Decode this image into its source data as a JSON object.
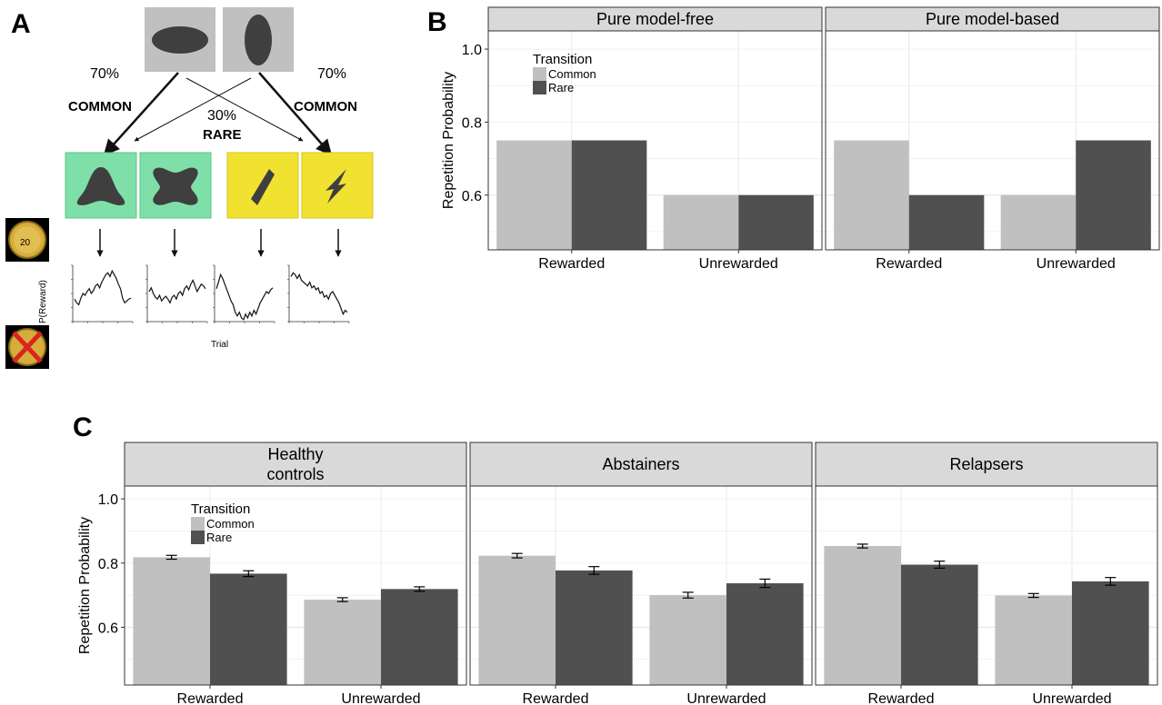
{
  "panels": {
    "a_label": "A",
    "b_label": "B",
    "c_label": "C"
  },
  "diagram": {
    "left_pct": "70%",
    "right_pct": "70%",
    "left_common": "COMMON",
    "right_common": "COMMON",
    "rare_pct": "30%",
    "rare_label": "RARE",
    "y_label": "P(Reward)",
    "x_label": "Trial",
    "colors": {
      "first_stage_box": "#c0c0c0",
      "green_box": "#7ee0a8",
      "yellow_box": "#f1e231",
      "shape": "#3f3f3f"
    },
    "icons": [
      "ellipse-horizontal-icon",
      "ellipse-vertical-icon",
      "bell-shape-icon",
      "dumbbell-shape-icon",
      "rhombus-shape-icon",
      "lightning-shape-icon",
      "coin-icon",
      "crossed-coin-icon"
    ],
    "walks": [
      [
        0.44,
        0.4,
        0.38,
        0.45,
        0.5,
        0.48,
        0.52,
        0.55,
        0.5,
        0.53,
        0.58,
        0.6,
        0.56,
        0.62,
        0.66,
        0.7,
        0.72,
        0.68,
        0.74,
        0.7,
        0.66,
        0.6,
        0.55,
        0.45,
        0.4,
        0.42,
        0.44,
        0.45
      ],
      [
        0.52,
        0.56,
        0.5,
        0.46,
        0.44,
        0.48,
        0.42,
        0.45,
        0.47,
        0.44,
        0.4,
        0.46,
        0.48,
        0.44,
        0.5,
        0.52,
        0.48,
        0.55,
        0.58,
        0.54,
        0.6,
        0.64,
        0.58,
        0.52,
        0.56,
        0.6,
        0.58,
        0.55
      ],
      [
        0.55,
        0.62,
        0.7,
        0.66,
        0.6,
        0.54,
        0.48,
        0.42,
        0.38,
        0.3,
        0.26,
        0.3,
        0.24,
        0.22,
        0.28,
        0.24,
        0.3,
        0.26,
        0.32,
        0.28,
        0.34,
        0.4,
        0.44,
        0.48,
        0.52,
        0.5,
        0.54,
        0.56
      ],
      [
        0.68,
        0.72,
        0.7,
        0.66,
        0.7,
        0.64,
        0.62,
        0.6,
        0.58,
        0.62,
        0.56,
        0.58,
        0.54,
        0.56,
        0.5,
        0.52,
        0.46,
        0.48,
        0.44,
        0.5,
        0.52,
        0.48,
        0.44,
        0.4,
        0.34,
        0.28,
        0.32,
        0.3
      ]
    ]
  },
  "chart_data": [
    {
      "type": "bar",
      "panel": "B",
      "facets": [
        {
          "title": "Pure model-free",
          "categories": [
            "Rewarded",
            "Unrewarded"
          ],
          "series": [
            {
              "name": "Common",
              "values": [
                0.75,
                0.6
              ]
            },
            {
              "name": "Rare",
              "values": [
                0.75,
                0.6
              ]
            }
          ]
        },
        {
          "title": "Pure model-based",
          "categories": [
            "Rewarded",
            "Unrewarded"
          ],
          "series": [
            {
              "name": "Common",
              "values": [
                0.75,
                0.6
              ]
            },
            {
              "name": "Rare",
              "values": [
                0.6,
                0.75
              ]
            }
          ]
        }
      ],
      "ylabel": "Repetition Probability",
      "ylim": [
        0.45,
        1.05
      ],
      "yticks": [
        "0.6",
        "0.8",
        "1.0"
      ],
      "legend_title": "Transition",
      "legend_placement": "top-left inside first facet",
      "colors": {
        "Common": "#c0c0c0",
        "Rare": "#505050"
      },
      "grid": true
    },
    {
      "type": "bar",
      "panel": "C",
      "facets": [
        {
          "title": [
            "Healthy",
            "controls"
          ],
          "categories": [
            "Rewarded",
            "Unrewarded"
          ],
          "series": [
            {
              "name": "Common",
              "values": [
                0.818,
                0.686
              ],
              "errors": [
                0.006,
                0.006
              ]
            },
            {
              "name": "Rare",
              "values": [
                0.767,
                0.719
              ],
              "errors": [
                0.009,
                0.007
              ]
            }
          ]
        },
        {
          "title": [
            "Abstainers"
          ],
          "categories": [
            "Rewarded",
            "Unrewarded"
          ],
          "series": [
            {
              "name": "Common",
              "values": [
                0.823,
                0.7
              ],
              "errors": [
                0.007,
                0.009
              ]
            },
            {
              "name": "Rare",
              "values": [
                0.777,
                0.737
              ],
              "errors": [
                0.012,
                0.013
              ]
            }
          ]
        },
        {
          "title": [
            "Relapsers"
          ],
          "categories": [
            "Rewarded",
            "Unrewarded"
          ],
          "series": [
            {
              "name": "Common",
              "values": [
                0.853,
                0.699
              ],
              "errors": [
                0.006,
                0.006
              ]
            },
            {
              "name": "Rare",
              "values": [
                0.795,
                0.743
              ],
              "errors": [
                0.011,
                0.012
              ]
            }
          ]
        }
      ],
      "ylabel": "Repetition Probability",
      "ylim": [
        0.42,
        1.04
      ],
      "yticks": [
        "0.6",
        "0.8",
        "1.0"
      ],
      "legend_title": "Transition",
      "legend_placement": "top-left inside first facet",
      "colors": {
        "Common": "#c0c0c0",
        "Rare": "#505050"
      },
      "grid": true
    }
  ]
}
